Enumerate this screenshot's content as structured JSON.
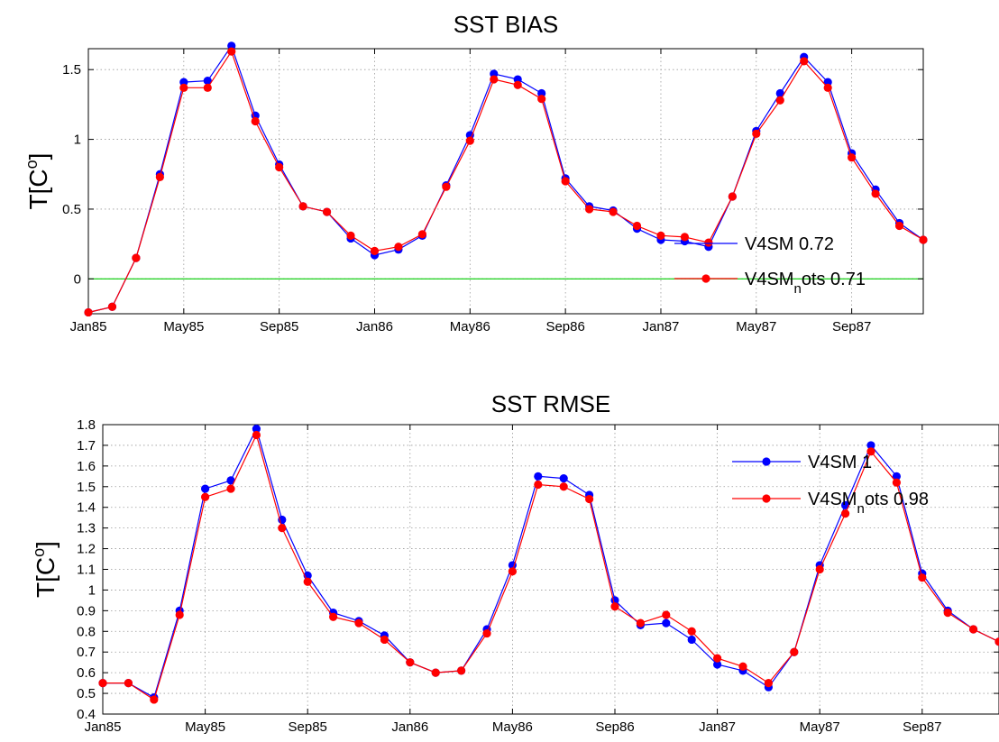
{
  "chart_data": [
    {
      "type": "line",
      "title": "SST BIAS",
      "ylabel_base": "T[C",
      "ylabel_sup": "o",
      "ylabel_end": "]",
      "x_tick_labels": [
        "Jan85",
        "May85",
        "Sep85",
        "Jan86",
        "May86",
        "Sep86",
        "Jan87",
        "May87",
        "Sep87"
      ],
      "x_tick_index": [
        0,
        4,
        8,
        12,
        16,
        20,
        24,
        28,
        32
      ],
      "x_count": 36,
      "ylim": [
        -0.25,
        1.65
      ],
      "y_ticks": [
        "0",
        "0.5",
        "1",
        "1.5"
      ],
      "y_tick_values": [
        0,
        0.5,
        1,
        1.5
      ],
      "grid": true,
      "zero_line": true,
      "zero_line_color": "#00cc00",
      "legend_position": "lower-right",
      "series": [
        {
          "legend_main": "V4SM 0.72",
          "legend_sub": "",
          "legend_after": "",
          "color": "#0000ff",
          "values": [
            -0.24,
            -0.2,
            0.15,
            0.75,
            1.41,
            1.42,
            1.67,
            1.17,
            0.82,
            0.52,
            0.48,
            0.29,
            0.17,
            0.21,
            0.31,
            0.67,
            1.03,
            1.47,
            1.43,
            1.33,
            0.72,
            0.52,
            0.49,
            0.36,
            0.28,
            0.27,
            0.23,
            0.59,
            1.06,
            1.33,
            1.59,
            1.41,
            0.9,
            0.64,
            0.4,
            0.28
          ]
        },
        {
          "legend_main": "V4SM",
          "legend_sub": "n",
          "legend_after": "ots 0.71",
          "color": "#ff0000",
          "values": [
            -0.24,
            -0.2,
            0.15,
            0.73,
            1.37,
            1.37,
            1.63,
            1.13,
            0.8,
            0.52,
            0.48,
            0.31,
            0.2,
            0.23,
            0.32,
            0.66,
            0.99,
            1.43,
            1.39,
            1.29,
            0.7,
            0.5,
            0.48,
            0.38,
            0.31,
            0.3,
            0.26,
            0.59,
            1.04,
            1.28,
            1.56,
            1.37,
            0.87,
            0.61,
            0.38,
            0.28
          ]
        }
      ]
    },
    {
      "type": "line",
      "title": "SST RMSE",
      "ylabel_base": "T[C",
      "ylabel_sup": "o",
      "ylabel_end": "]",
      "x_tick_labels": [
        "Jan85",
        "May85",
        "Sep85",
        "Jan86",
        "May86",
        "Sep86",
        "Jan87",
        "May87",
        "Sep87"
      ],
      "x_tick_index": [
        0,
        4,
        8,
        12,
        16,
        20,
        24,
        28,
        32
      ],
      "x_count": 36,
      "ylim": [
        0.4,
        1.8
      ],
      "y_ticks": [
        "0.4",
        "0.5",
        "0.6",
        "0.7",
        "0.8",
        "0.9",
        "1",
        "1.1",
        "1.2",
        "1.3",
        "1.4",
        "1.5",
        "1.6",
        "1.7",
        "1.8"
      ],
      "y_tick_values": [
        0.4,
        0.5,
        0.6,
        0.7,
        0.8,
        0.9,
        1.0,
        1.1,
        1.2,
        1.3,
        1.4,
        1.5,
        1.6,
        1.7,
        1.8
      ],
      "grid": true,
      "zero_line": false,
      "legend_position": "upper-right",
      "series": [
        {
          "legend_main": "V4SM 1",
          "legend_sub": "",
          "legend_after": "",
          "color": "#0000ff",
          "values": [
            0.55,
            0.55,
            0.48,
            0.9,
            1.49,
            1.53,
            1.78,
            1.34,
            1.07,
            0.89,
            0.85,
            0.78,
            0.65,
            0.6,
            0.61,
            0.81,
            1.12,
            1.55,
            1.54,
            1.46,
            0.95,
            0.83,
            0.84,
            0.76,
            0.64,
            0.61,
            0.53,
            0.7,
            1.12,
            1.41,
            1.7,
            1.55,
            1.08,
            0.9,
            0.81,
            0.75
          ]
        },
        {
          "legend_main": "V4SM",
          "legend_sub": "n",
          "legend_after": "ots 0.98",
          "color": "#ff0000",
          "values": [
            0.55,
            0.55,
            0.47,
            0.88,
            1.45,
            1.49,
            1.75,
            1.3,
            1.04,
            0.87,
            0.84,
            0.76,
            0.65,
            0.6,
            0.61,
            0.79,
            1.09,
            1.51,
            1.5,
            1.44,
            0.92,
            0.84,
            0.88,
            0.8,
            0.67,
            0.63,
            0.55,
            0.7,
            1.1,
            1.37,
            1.67,
            1.52,
            1.06,
            0.89,
            0.81,
            0.75
          ]
        }
      ]
    }
  ]
}
